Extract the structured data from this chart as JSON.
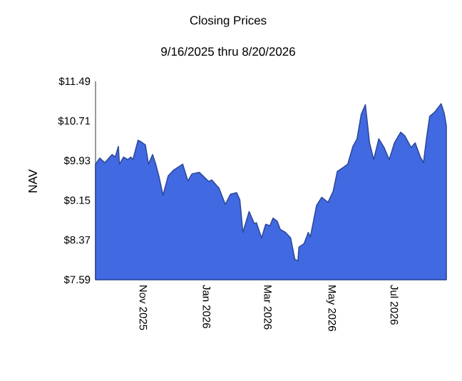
{
  "chart_data": {
    "type": "area",
    "title": "Closing Prices",
    "subtitle": "9/16/2025 thru 8/20/2026",
    "ylabel": "NAV",
    "color": "#4169e1",
    "x": [
      "2025-09-16",
      "2025-09-20",
      "2025-09-25",
      "2025-10-02",
      "2025-10-05",
      "2025-10-08",
      "2025-10-09",
      "2025-10-13",
      "2025-10-17",
      "2025-10-20",
      "2025-10-22",
      "2025-10-27",
      "2025-10-30",
      "2025-11-03",
      "2025-11-06",
      "2025-11-10",
      "2025-11-13",
      "2025-11-16",
      "2025-11-20",
      "2025-11-25",
      "2025-11-30",
      "2025-12-09",
      "2025-12-14",
      "2025-12-18",
      "2025-12-25",
      "2025-12-31",
      "2026-01-03",
      "2026-01-06",
      "2026-01-13",
      "2026-01-19",
      "2026-01-24",
      "2026-01-30",
      "2026-02-02",
      "2026-02-05",
      "2026-02-11",
      "2026-02-16",
      "2026-02-18",
      "2026-02-23",
      "2026-02-27",
      "2026-03-03",
      "2026-03-06",
      "2026-03-10",
      "2026-03-13",
      "2026-03-18",
      "2026-03-23",
      "2026-03-27",
      "2026-03-30",
      "2026-03-31",
      "2026-04-05",
      "2026-04-09",
      "2026-04-11",
      "2026-04-17",
      "2026-04-22",
      "2026-04-28",
      "2026-05-03",
      "2026-05-07",
      "2026-05-13",
      "2026-05-17",
      "2026-05-22",
      "2026-05-26",
      "2026-05-30",
      "2026-06-03",
      "2026-06-07",
      "2026-06-11",
      "2026-06-16",
      "2026-06-21",
      "2026-06-26",
      "2026-07-01",
      "2026-07-07",
      "2026-07-11",
      "2026-07-17",
      "2026-07-21",
      "2026-07-26",
      "2026-07-29",
      "2026-08-01",
      "2026-08-04",
      "2026-08-09",
      "2026-08-15",
      "2026-08-18",
      "2026-08-20"
    ],
    "values": [
      9.86,
      9.98,
      9.89,
      10.05,
      10.0,
      10.21,
      9.86,
      10.0,
      9.95,
      10.0,
      9.95,
      10.33,
      10.3,
      10.24,
      9.86,
      10.05,
      9.86,
      9.63,
      9.25,
      9.63,
      9.74,
      9.86,
      9.53,
      9.67,
      9.7,
      9.58,
      9.52,
      9.55,
      9.39,
      9.07,
      9.27,
      9.3,
      9.16,
      8.52,
      8.93,
      8.69,
      8.71,
      8.41,
      8.68,
      8.65,
      8.8,
      8.74,
      8.58,
      8.52,
      8.41,
      7.99,
      7.96,
      8.23,
      8.3,
      8.52,
      8.43,
      9.05,
      9.21,
      9.11,
      9.33,
      9.72,
      9.8,
      9.86,
      10.21,
      10.36,
      10.84,
      11.03,
      10.28,
      9.95,
      10.36,
      10.19,
      9.95,
      10.28,
      10.49,
      10.42,
      10.19,
      10.28,
      10.0,
      9.89,
      10.38,
      10.8,
      10.89,
      11.05,
      10.86,
      10.61
    ],
    "xlim": [
      "2025-09-16",
      "2026-08-20"
    ],
    "xticks": [
      {
        "value": "2025-11-01",
        "label": "Nov  2025"
      },
      {
        "value": "2026-01-01",
        "label": "Jan  2026"
      },
      {
        "value": "2026-03-01",
        "label": "Mar  2026"
      },
      {
        "value": "2026-05-01",
        "label": "May  2026"
      },
      {
        "value": "2026-07-01",
        "label": "Jul  2026"
      }
    ],
    "ylim": [
      7.59,
      11.49
    ],
    "yticks": [
      {
        "value": 7.59,
        "label": "$7.59"
      },
      {
        "value": 8.37,
        "label": "$8.37"
      },
      {
        "value": 9.15,
        "label": "$9.15"
      },
      {
        "value": 9.93,
        "label": "$9.93"
      },
      {
        "value": 10.71,
        "label": "$10.71"
      },
      {
        "value": 11.49,
        "label": "$11.49"
      }
    ],
    "grid": false
  }
}
